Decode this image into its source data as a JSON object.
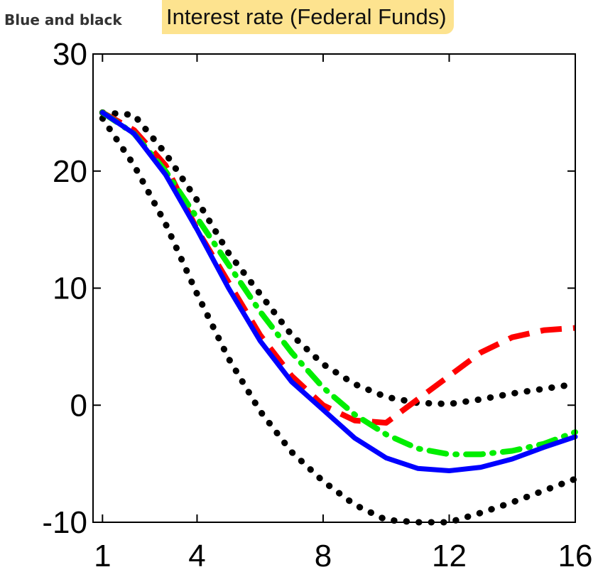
{
  "header": {
    "side_label": "Blue and black",
    "title": "Interest rate (Federal Funds)"
  },
  "chart_data": {
    "type": "line",
    "title": "Interest rate (Federal Funds)",
    "xlabel": "",
    "ylabel": "",
    "xlim": [
      0.7,
      16
    ],
    "ylim": [
      -10,
      30
    ],
    "xticks": [
      1,
      4,
      8,
      12,
      16
    ],
    "yticks": [
      -10,
      0,
      10,
      20,
      30
    ],
    "grid": false,
    "series": [
      {
        "color": "#ff0000",
        "style": "dashed",
        "x": [
          1,
          2,
          3,
          4,
          5,
          6,
          7,
          8,
          9,
          10,
          11,
          12,
          13,
          14,
          15,
          16
        ],
        "y": [
          25,
          23.5,
          20.5,
          15,
          10.5,
          6,
          2.5,
          0,
          -1.3,
          -1.5,
          0.5,
          2.5,
          4.5,
          5.8,
          6.4,
          6.6
        ]
      },
      {
        "color": "#00ee00",
        "style": "dashdot",
        "x": [
          1,
          2,
          3,
          4,
          5,
          6,
          7,
          8,
          9,
          10,
          11,
          12,
          13,
          14,
          15,
          16
        ],
        "y": [
          25,
          23.2,
          20,
          16,
          12,
          8,
          4.5,
          1.5,
          -0.8,
          -2.5,
          -3.7,
          -4.2,
          -4.2,
          -3.9,
          -3.3,
          -2.3
        ]
      },
      {
        "color": "#0000ff",
        "style": "solid",
        "x": [
          1,
          2,
          3,
          4,
          5,
          6,
          7,
          8,
          9,
          10,
          11,
          12,
          13,
          14,
          15,
          16
        ],
        "y": [
          25,
          23.2,
          19.7,
          15,
          10,
          5.5,
          2,
          -0.4,
          -2.8,
          -4.5,
          -5.4,
          -5.6,
          -5.3,
          -4.6,
          -3.6,
          -2.7
        ]
      },
      {
        "color": "#000000",
        "style": "dotted",
        "x": [
          1,
          2,
          3,
          4,
          5,
          6,
          7,
          8,
          9,
          10,
          11,
          12,
          13,
          14,
          15,
          16
        ],
        "y": [
          25,
          24.8,
          21.5,
          17.5,
          13,
          9.5,
          6,
          3.5,
          1.8,
          0.7,
          0.2,
          0.1,
          0.5,
          1,
          1.4,
          1.8
        ]
      },
      {
        "color": "#000000",
        "style": "dotted",
        "x": [
          1,
          2,
          3,
          4,
          5,
          6,
          7,
          8,
          9,
          10,
          11,
          12,
          13,
          14,
          15,
          16
        ],
        "y": [
          24.5,
          20.5,
          15.5,
          9.5,
          4,
          -0.5,
          -4,
          -6.5,
          -8.5,
          -9.8,
          -10,
          -10,
          -9.2,
          -8.3,
          -7.3,
          -6.3
        ]
      }
    ]
  }
}
